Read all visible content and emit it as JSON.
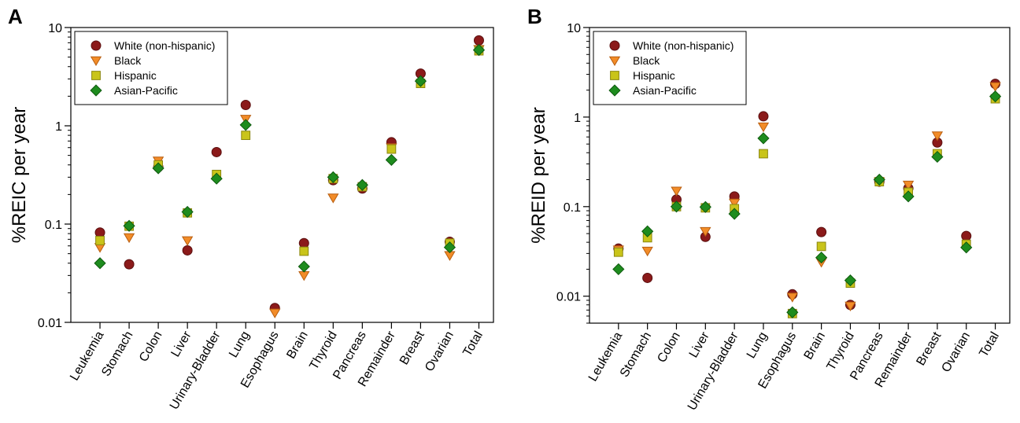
{
  "series_styles": [
    {
      "name": "White (non-hispanic)",
      "shape": "circle",
      "fill": "#8B1A1A",
      "stroke": "#5a0f0f"
    },
    {
      "name": "Black",
      "shape": "triangle-down",
      "fill": "#F28C28",
      "stroke": "#b85e10"
    },
    {
      "name": "Hispanic",
      "shape": "square",
      "fill": "#C9C41A",
      "stroke": "#8a8610"
    },
    {
      "name": "Asian-Pacific",
      "shape": "diamond",
      "fill": "#1E8C1E",
      "stroke": "#0f5a0f"
    }
  ],
  "chart_data": [
    {
      "panel_label": "A",
      "type": "scatter",
      "ylabel": "%REIC per year",
      "yscale": "log",
      "ylim": [
        0.01,
        10
      ],
      "ytick_labels": [
        "0.01",
        "0.1",
        "1",
        "10"
      ],
      "ytick_values": [
        0.01,
        0.1,
        1,
        10
      ],
      "legend_position": "top-left",
      "categories": [
        "Leukemia",
        "Stomach",
        "Colon",
        "Liver",
        "Urinary-Bladder",
        "Lung",
        "Esophagus",
        "Brain",
        "Thyroid",
        "Pancreas",
        "Remainder",
        "Breast",
        "Ovarian",
        "Total"
      ],
      "series": [
        {
          "name": "White (non-hispanic)",
          "values": [
            0.082,
            0.039,
            0.38,
            0.054,
            0.54,
            1.63,
            0.014,
            0.064,
            0.28,
            0.23,
            0.68,
            3.4,
            0.066,
            7.4
          ]
        },
        {
          "name": "Black",
          "values": [
            0.058,
            0.073,
            0.44,
            0.068,
            null,
            1.17,
            0.0125,
            0.03,
            0.185,
            null,
            0.6,
            null,
            0.048,
            6.0
          ]
        },
        {
          "name": "Hispanic",
          "values": [
            0.068,
            0.095,
            0.4,
            0.13,
            0.32,
            0.8,
            null,
            0.053,
            0.29,
            0.24,
            0.58,
            2.7,
            0.064,
            5.8
          ]
        },
        {
          "name": "Asian-Pacific",
          "values": [
            0.04,
            0.096,
            0.37,
            0.133,
            0.29,
            1.02,
            null,
            0.037,
            0.3,
            0.25,
            0.45,
            2.85,
            0.058,
            5.9
          ]
        }
      ]
    },
    {
      "panel_label": "B",
      "type": "scatter",
      "ylabel": "%REID per year",
      "yscale": "log",
      "ylim": [
        0.005,
        10
      ],
      "ytick_labels": [
        "0.01",
        "0.1",
        "1",
        "10"
      ],
      "ytick_values": [
        0.01,
        0.1,
        1,
        10
      ],
      "legend_position": "top-left",
      "categories": [
        "Leukemia",
        "Stomach",
        "Colon",
        "Liver",
        "Urinary-Bladder",
        "Lung",
        "Esophagus",
        "Brain",
        "Thyroid",
        "Pancreas",
        "Remainder",
        "Breast",
        "Ovarian",
        "Total"
      ],
      "series": [
        {
          "name": "White (non-hispanic)",
          "values": [
            0.034,
            0.016,
            0.12,
            0.046,
            0.13,
            1.02,
            0.0105,
            0.052,
            0.008,
            0.19,
            0.16,
            0.52,
            0.047,
            2.35
          ]
        },
        {
          "name": "Black",
          "values": [
            0.033,
            0.032,
            0.15,
            0.053,
            0.11,
            0.78,
            0.0098,
            0.024,
            0.0078,
            0.19,
            0.175,
            0.62,
            null,
            2.2
          ]
        },
        {
          "name": "Hispanic",
          "values": [
            0.031,
            0.045,
            0.1,
            0.097,
            0.095,
            0.39,
            0.0064,
            0.036,
            0.014,
            0.19,
            0.145,
            0.39,
            0.038,
            1.6
          ]
        },
        {
          "name": "Asian-Pacific",
          "values": [
            0.02,
            0.053,
            0.1,
            0.099,
            0.083,
            0.58,
            0.0066,
            0.027,
            0.015,
            0.2,
            0.13,
            0.36,
            0.035,
            1.7
          ]
        }
      ]
    }
  ]
}
